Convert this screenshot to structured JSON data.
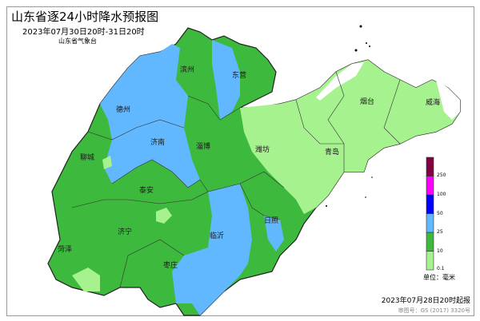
{
  "header": {
    "title": "山东省逐24小时降水预报图",
    "period": "2023年07月30日20时-31日20时",
    "agency": "山东省气象台"
  },
  "cities": [
    "滨州",
    "东营",
    "德州",
    "烟台",
    "威海",
    "济南",
    "淄博",
    "潍坊",
    "青岛",
    "聊城",
    "泰安",
    "日照",
    "济宁",
    "临沂",
    "菏泽",
    "枣庄"
  ],
  "legend": {
    "unit": "单位：毫米",
    "levels": [
      "0.1",
      "10",
      "25",
      "50",
      "100",
      "250"
    ],
    "colors": [
      "#a6f28f",
      "#3dba3d",
      "#61b8ff",
      "#0000ff",
      "#fa00fa",
      "#800040"
    ]
  },
  "footer": {
    "issued": "2023年07月28日20时起报",
    "review_no": "审图号：GS (2017) 3320号"
  }
}
